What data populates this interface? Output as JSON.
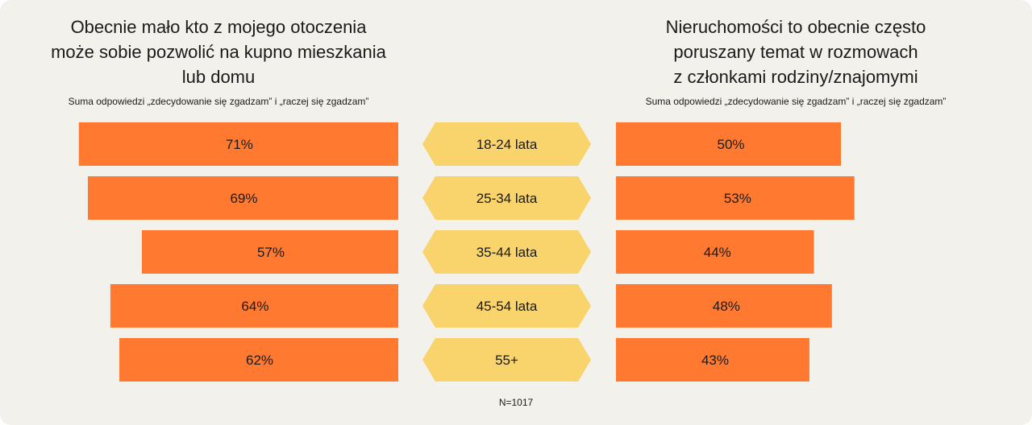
{
  "chart_data": [
    {
      "type": "bar",
      "orientation": "horizontal",
      "direction": "right-to-left",
      "title": "Obecnie mało kto z mojego otoczenia może sobie pozwolić na kupno mieszkania lub domu",
      "title_lines": [
        "Obecnie mało kto z mojego otoczenia",
        "może sobie pozwolić na kupno mieszkania",
        "lub domu"
      ],
      "subtitle": "Suma odpowiedzi „zdecydowanie się zgadzam” i „raczej się zgadzam”",
      "categories": [
        "18-24 lata",
        "25-34 lata",
        "35-44 lata",
        "45-54 lata",
        "55+"
      ],
      "values": [
        71,
        69,
        57,
        64,
        62
      ],
      "value_labels": [
        "71%",
        "69%",
        "57%",
        "64%",
        "62%"
      ],
      "xlim": [
        0,
        100
      ]
    },
    {
      "type": "bar",
      "orientation": "horizontal",
      "direction": "left-to-right",
      "title": "Nieruchomości to obecnie często poruszany temat w rozmowach z członkami rodziny/znajomymi",
      "title_lines": [
        "Nieruchomości to obecnie często",
        "poruszany temat w rozmowach",
        "z członkami rodziny/znajomymi"
      ],
      "subtitle": "Suma odpowiedzi „zdecydowanie się zgadzam” i „raczej się zgadzam”",
      "categories": [
        "18-24 lata",
        "25-34 lata",
        "35-44 lata",
        "45-54 lata",
        "55+"
      ],
      "values": [
        50,
        53,
        44,
        48,
        43
      ],
      "value_labels": [
        "50%",
        "53%",
        "44%",
        "48%",
        "43%"
      ],
      "xlim": [
        0,
        100
      ]
    }
  ],
  "note": "N=1017",
  "colors": {
    "bar": "#ff7a30",
    "category": "#f9d36b",
    "background": "#f3f1ec"
  }
}
